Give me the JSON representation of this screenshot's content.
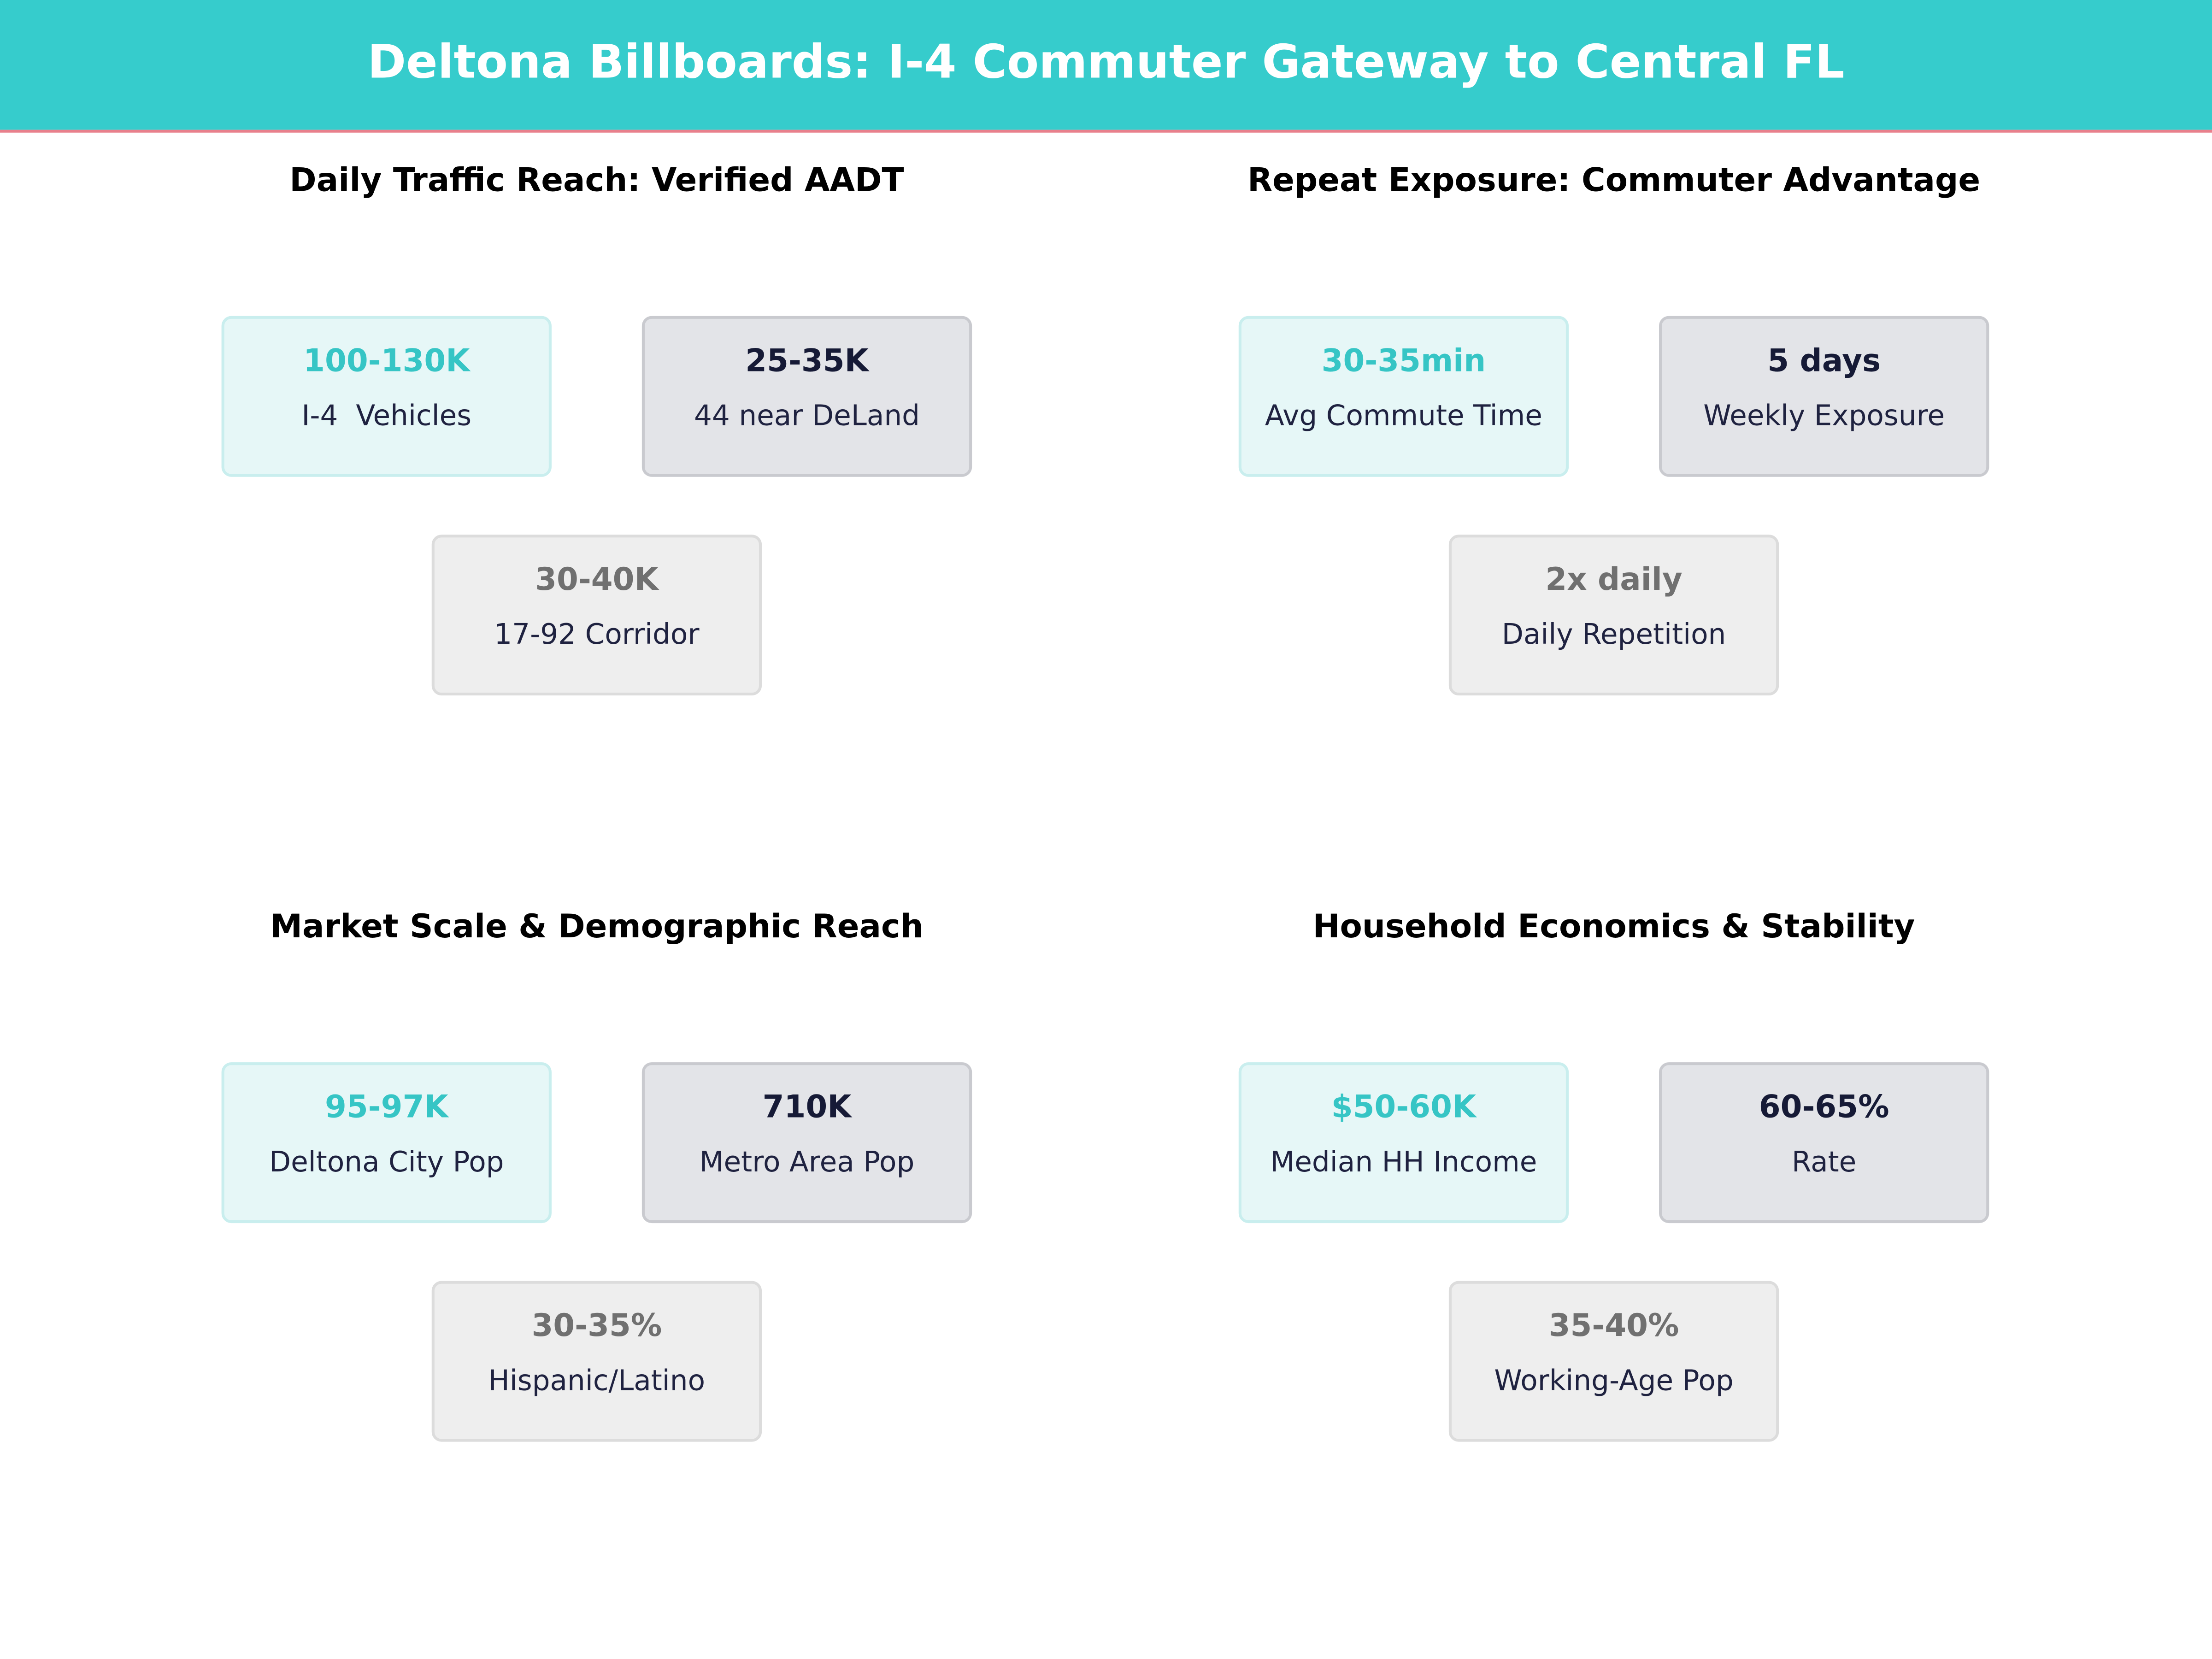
{
  "header": {
    "title": "Deltona Billboards: I-4 Commuter Gateway to Central FL"
  },
  "panels": [
    {
      "title": "Daily Traffic Reach: Verified AADT",
      "cards": [
        {
          "value": "100-130K",
          "label": "I-4  Vehicles"
        },
        {
          "value": "25-35K",
          "label": "44 near DeLand"
        },
        {
          "value": "30-40K",
          "label": "17-92 Corridor"
        }
      ]
    },
    {
      "title": "Repeat Exposure: Commuter Advantage",
      "cards": [
        {
          "value": "30-35min",
          "label": "Avg Commute Time"
        },
        {
          "value": "5 days",
          "label": "Weekly Exposure"
        },
        {
          "value": "2x daily",
          "label": "Daily Repetition"
        }
      ]
    },
    {
      "title": "Market Scale & Demographic Reach",
      "cards": [
        {
          "value": "95-97K",
          "label": "Deltona City Pop"
        },
        {
          "value": "710K",
          "label": "Metro Area Pop"
        },
        {
          "value": "30-35%",
          "label": "Hispanic/Latino"
        }
      ]
    },
    {
      "title": "Household Economics & Stability",
      "cards": [
        {
          "value": "$50-60K",
          "label": "Median HH Income"
        },
        {
          "value": "60-65%",
          "label": "Rate"
        },
        {
          "value": "35-40%",
          "label": "Working-Age Pop"
        }
      ]
    }
  ]
}
